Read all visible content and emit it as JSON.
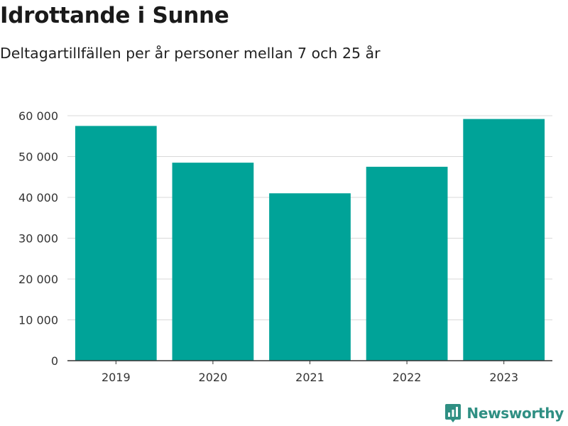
{
  "header": {
    "title": "Idrottande i Sunne",
    "subtitle": "Deltagartillfällen per år personer mellan 7 och 25 år"
  },
  "brand": {
    "name": "Newsworthy",
    "color": "#2f8f83",
    "icon": "bar-chart-pin-icon"
  },
  "colors": {
    "bar": "#00a398",
    "grid": "#d9d9d9",
    "axis": "#333333"
  },
  "chart_data": {
    "type": "bar",
    "categories": [
      "2019",
      "2020",
      "2021",
      "2022",
      "2023"
    ],
    "values": [
      57500,
      48500,
      41000,
      47500,
      59200
    ],
    "ylim": [
      0,
      60000
    ],
    "yticks": [
      0,
      10000,
      20000,
      30000,
      40000,
      50000,
      60000
    ],
    "ytick_labels": [
      "0",
      "10 000",
      "20 000",
      "30 000",
      "40 000",
      "50 000",
      "60 000"
    ],
    "grid": true,
    "legend": "none"
  }
}
